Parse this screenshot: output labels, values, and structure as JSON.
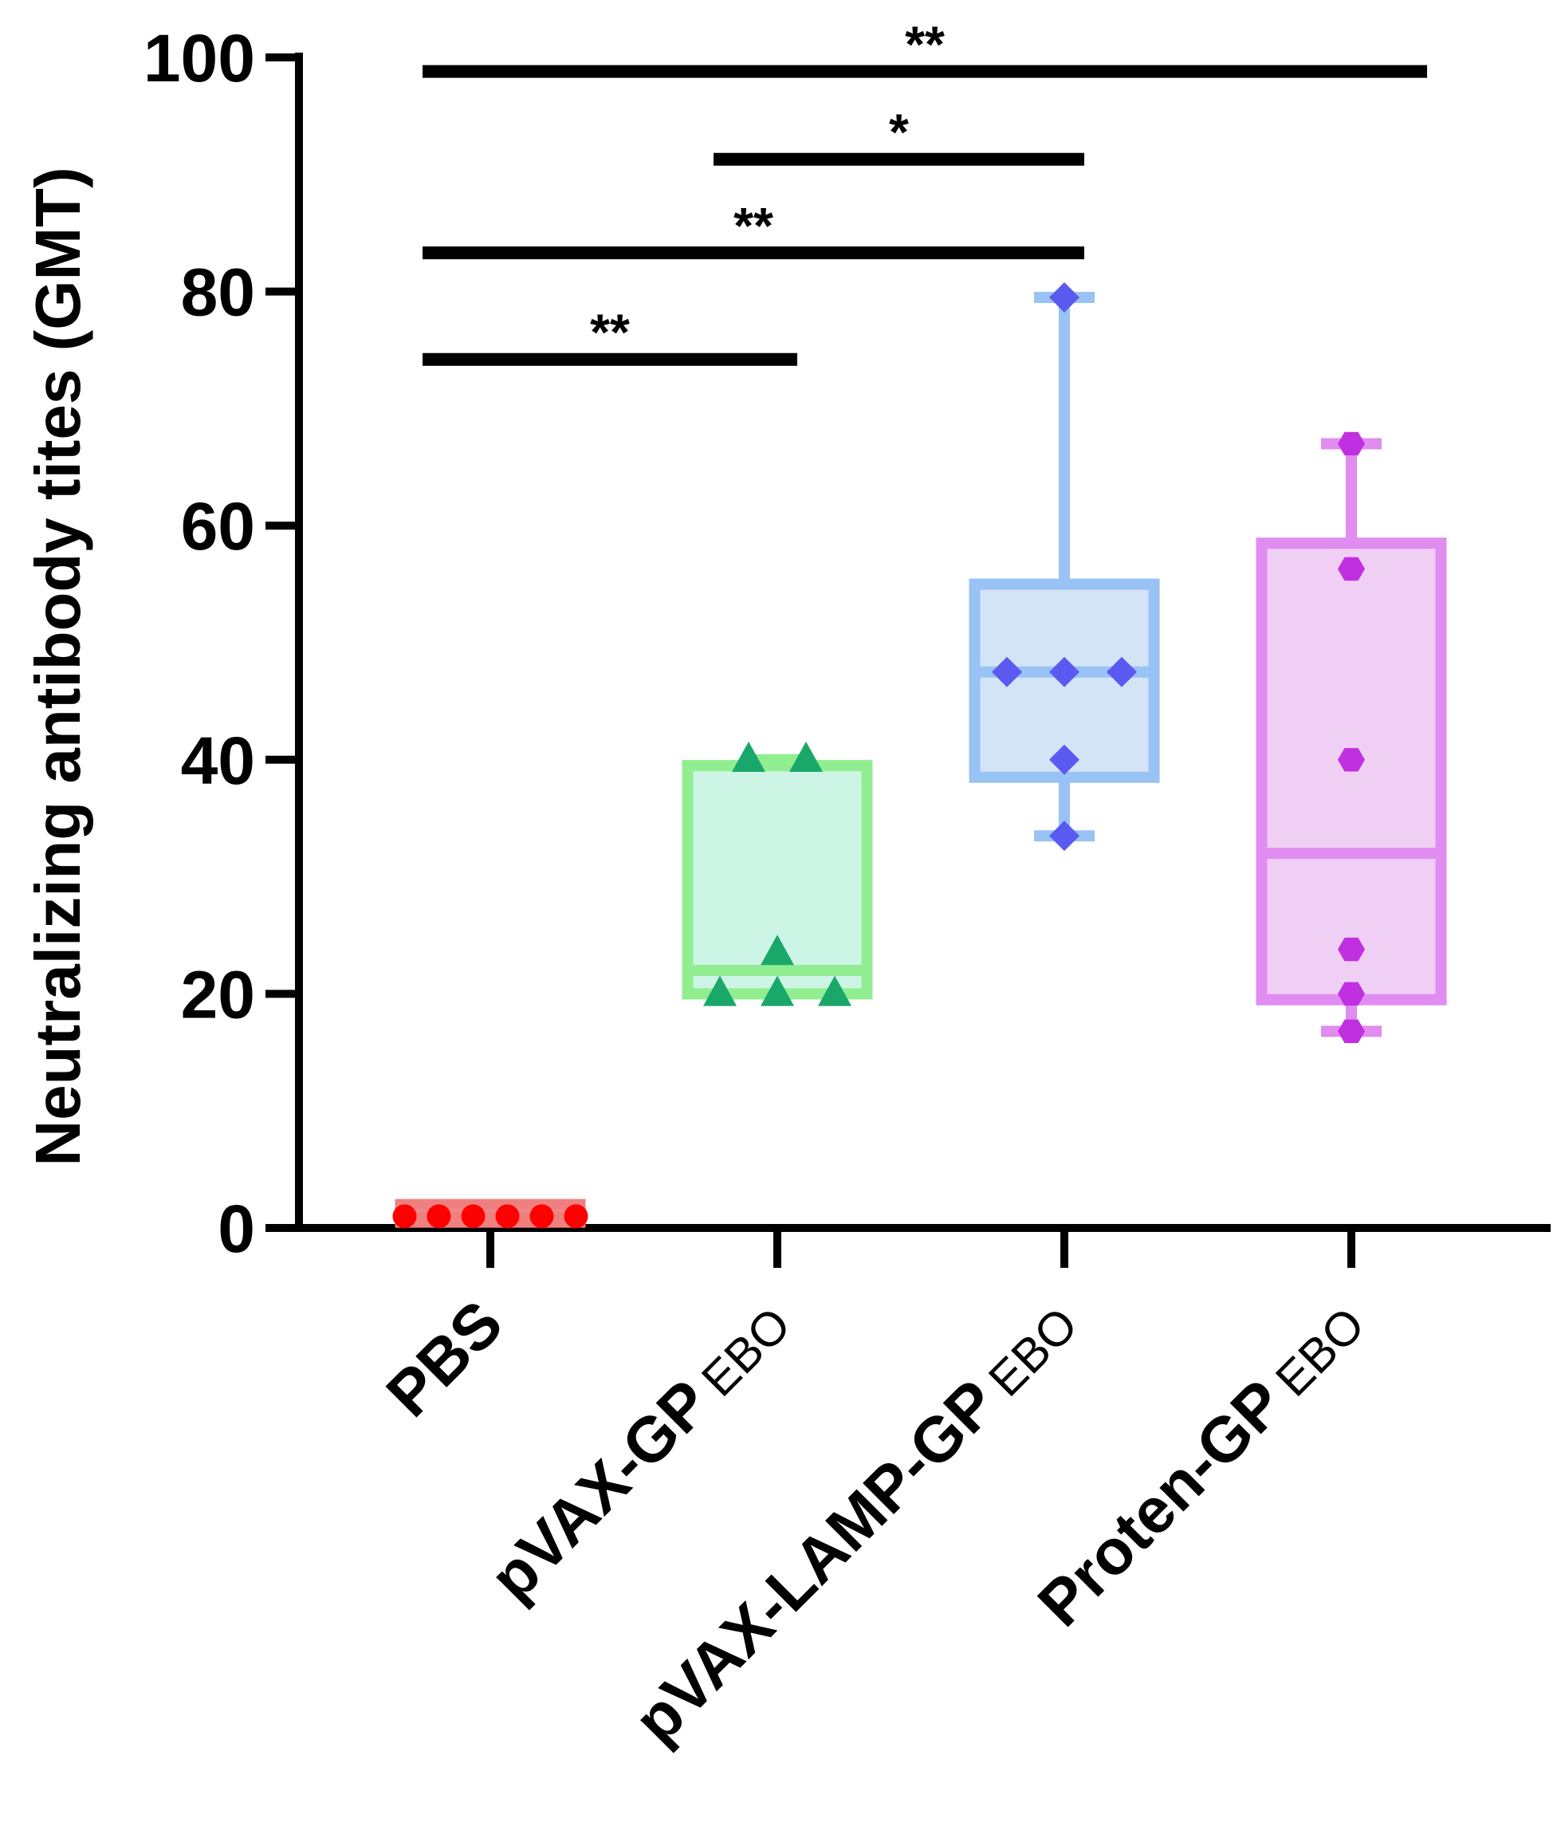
{
  "chart_data": {
    "type": "box",
    "title": "",
    "xlabel": "",
    "ylabel": "Neutralizing antibody tites (GMT)",
    "ylim": [
      0,
      100
    ],
    "yticks": [
      0,
      20,
      40,
      60,
      80,
      100
    ],
    "grid": false,
    "categories": [
      {
        "main": "PBS",
        "sub": ""
      },
      {
        "main": "pVAX-GP",
        "sub": "EBO"
      },
      {
        "main": "pVAX-LAMP-GP",
        "sub": "EBO"
      },
      {
        "main": "Proten-GP",
        "sub": "EBO"
      }
    ],
    "groups": [
      {
        "name": "PBS",
        "marker": "circle",
        "box_color": "#f08080",
        "box_fill": "#f4a0a0",
        "point_color": "#ff0000",
        "q1": 0.5,
        "median": 1,
        "q3": 2,
        "whisker_low": 0.5,
        "whisker_high": 2,
        "points": [
          1,
          1,
          1,
          1,
          1,
          1
        ]
      },
      {
        "name": "pVAX-GP EBO",
        "marker": "triangle",
        "box_color": "#90ee90",
        "box_fill": "#ccf5e6",
        "point_color": "#1aa86a",
        "q1": 20,
        "median": 22,
        "q3": 39.5,
        "whisker_low": 20,
        "whisker_high": 40,
        "points": [
          20,
          20,
          20,
          23.5,
          40,
          40
        ]
      },
      {
        "name": "pVAX-LAMP-GP EBO",
        "marker": "diamond",
        "box_color": "#99c2f5",
        "box_fill": "#d4e4f7",
        "point_color": "#5a5af0",
        "q1": 38.5,
        "median": 47.5,
        "q3": 55,
        "whisker_low": 33.5,
        "whisker_high": 79.5,
        "points": [
          33.5,
          40,
          47.5,
          47.5,
          47.5,
          79.5
        ]
      },
      {
        "name": "Proten-GP EBO",
        "marker": "hexagon",
        "box_color": "#e08cf0",
        "box_fill": "#f0cff5",
        "point_color": "#c030e0",
        "q1": 19.5,
        "median": 32,
        "q3": 58.5,
        "whisker_low": 16.8,
        "whisker_high": 67,
        "points": [
          16.8,
          20,
          23.8,
          40,
          56.3,
          67
        ]
      }
    ],
    "significance": [
      {
        "from": 0,
        "to": 3,
        "y": 98.8,
        "label": "**"
      },
      {
        "from": 1,
        "to": 2,
        "y": 91.3,
        "label": "*"
      },
      {
        "from": 0,
        "to": 2,
        "y": 83.3,
        "label": "**"
      },
      {
        "from": 0,
        "to": 1,
        "y": 74.2,
        "label": "**"
      }
    ]
  }
}
